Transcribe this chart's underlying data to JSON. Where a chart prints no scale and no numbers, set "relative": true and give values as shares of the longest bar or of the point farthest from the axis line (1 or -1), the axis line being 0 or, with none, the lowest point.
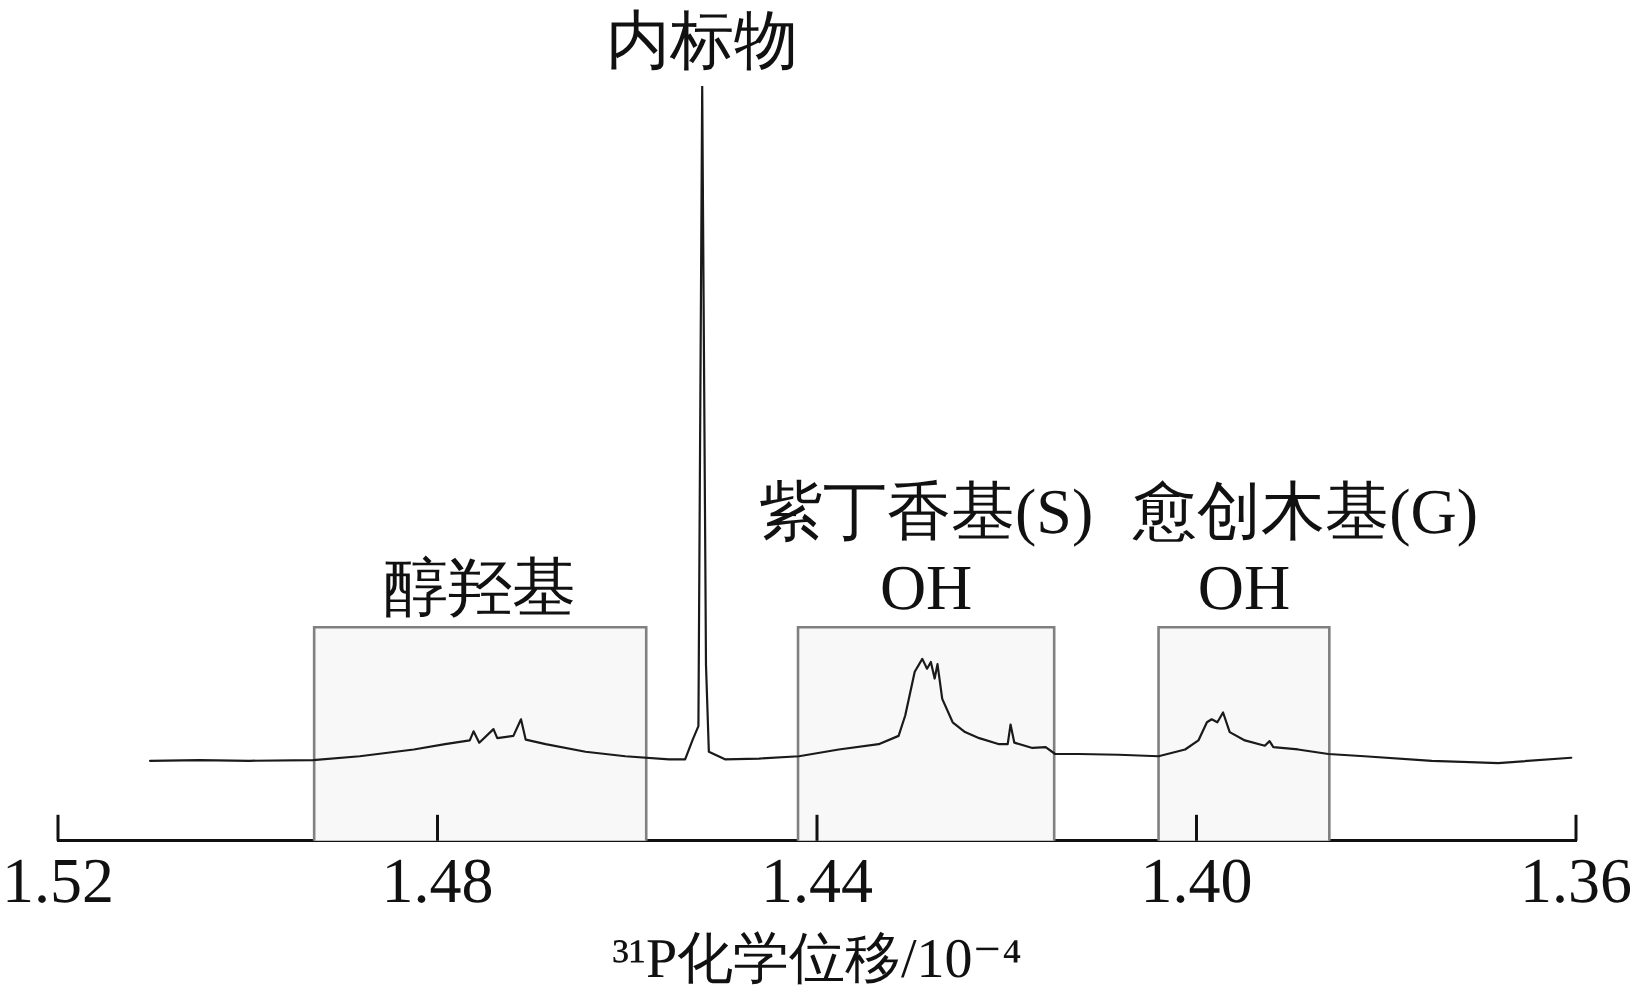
{
  "chart_data": {
    "type": "line",
    "relative": true,
    "xlabel": "³¹P化学位移/10⁻⁴",
    "xlim": [
      1.52,
      1.36
    ],
    "xticks": [
      1.52,
      1.48,
      1.44,
      {
        "value": 1.4,
        "label": "1.40"
      },
      1.36
    ],
    "color": "#1a1a1a",
    "marker": "none",
    "line_style": "solid",
    "x": [
      1.5103,
      1.5051,
      1.4998,
      1.4931,
      1.4882,
      1.4825,
      1.4792,
      1.4766,
      1.4762,
      1.4756,
      1.4741,
      1.4737,
      1.472,
      1.4712,
      1.4707,
      1.4686,
      1.4644,
      1.4602,
      1.4556,
      1.4539,
      1.4531,
      1.4525,
      1.4521,
      1.4517,
      1.4514,
      1.4497,
      1.4461,
      1.4419,
      1.4377,
      1.4335,
      1.4314,
      1.4307,
      1.4297,
      1.4289,
      1.4284,
      1.428,
      1.4276,
      1.4273,
      1.4268,
      1.4257,
      1.4244,
      1.4229,
      1.4208,
      1.4199,
      1.4196,
      1.4192,
      1.4173,
      1.4159,
      1.4149,
      1.4124,
      1.4082,
      1.404,
      1.4012,
      1.3998,
      1.3989,
      1.3984,
      1.3978,
      1.3972,
      1.3965,
      1.3949,
      1.3928,
      1.3923,
      1.3919,
      1.3893,
      1.3861,
      1.3823,
      1.3752,
      1.3682,
      1.3605
    ],
    "values": [
      0.106,
      0.107,
      0.106,
      0.107,
      0.112,
      0.121,
      0.128,
      0.133,
      0.145,
      0.13,
      0.148,
      0.136,
      0.139,
      0.161,
      0.134,
      0.128,
      0.118,
      0.112,
      0.108,
      0.108,
      0.134,
      0.152,
      1,
      0.233,
      0.118,
      0.108,
      0.109,
      0.112,
      0.121,
      0.128,
      0.139,
      0.166,
      0.224,
      0.241,
      0.228,
      0.237,
      0.215,
      0.234,
      0.188,
      0.157,
      0.144,
      0.136,
      0.128,
      0.128,
      0.154,
      0.13,
      0.123,
      0.124,
      0.115,
      0.115,
      0.114,
      0.112,
      0.121,
      0.133,
      0.157,
      0.161,
      0.157,
      0.17,
      0.144,
      0.133,
      0.126,
      0.132,
      0.124,
      0.121,
      0.115,
      0.112,
      0.106,
      0.103,
      0.11
    ],
    "bands": [
      {
        "axis": "x",
        "from": 1.493,
        "to": 1.458,
        "label": "醇羟基",
        "color": "#f8f8f8"
      },
      {
        "axis": "x",
        "from": 1.442,
        "to": 1.415,
        "label": "紫丁香基(S)\nOH",
        "color": "#f8f8f8"
      },
      {
        "axis": "x",
        "from": 1.404,
        "to": 1.386,
        "label": "愈创木基(G)\nOH",
        "color": "#f8f8f8"
      }
    ],
    "annotations": [
      {
        "text": "内标物",
        "x": 1.4521,
        "y": 1
      }
    ]
  }
}
